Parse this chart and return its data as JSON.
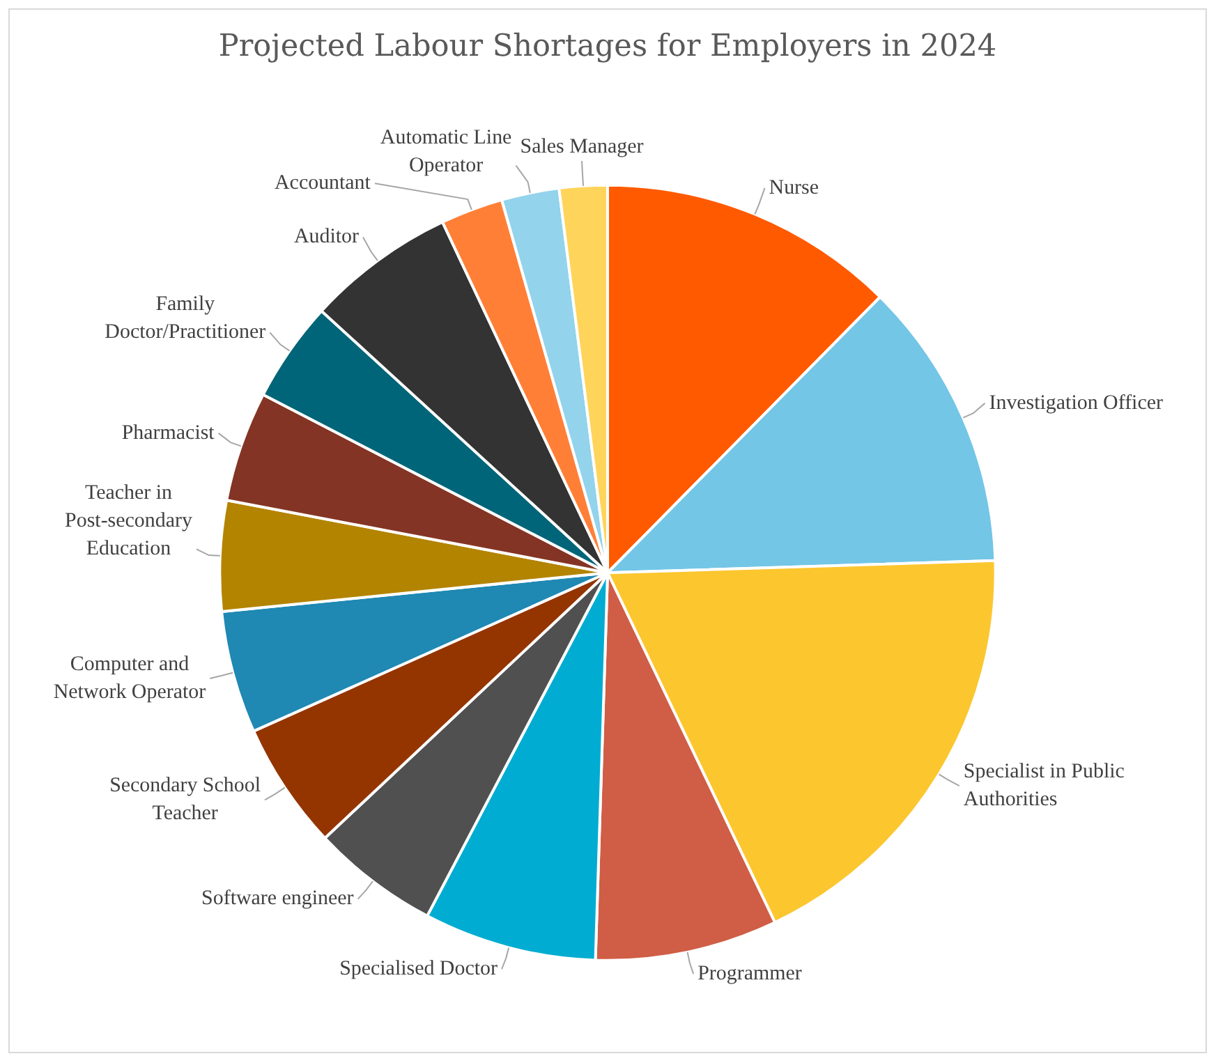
{
  "chart_data": {
    "type": "pie",
    "title": "Projected Labour Shortages for Employers in 2024",
    "categories": [
      "Nurse",
      "Investigation Officer",
      "Specialist in Public Authorities",
      "Programmer",
      "Specialised Doctor",
      "Software engineer",
      "Secondary School Teacher",
      "Computer and Network Operator",
      "Teacher in Post-secondary Education",
      "Pharmacist",
      "Family Doctor/Practitioner",
      "Auditor",
      "Accountant",
      "Automatic Line Operator",
      "Sales Manager"
    ],
    "values": [
      12.4,
      12.1,
      18.4,
      7.6,
      7.2,
      5.3,
      5.3,
      5.1,
      4.6,
      4.6,
      4.2,
      6.2,
      2.6,
      2.4,
      2.0
    ],
    "colors": [
      "#ff5a00",
      "#73c6e6",
      "#fcc62e",
      "#d05d45",
      "#00acd1",
      "#505050",
      "#943500",
      "#1f88b3",
      "#b38400",
      "#843424",
      "#006578",
      "#333333",
      "#ff7f37",
      "#93d3ec",
      "#ffd45b"
    ],
    "legend": false
  }
}
